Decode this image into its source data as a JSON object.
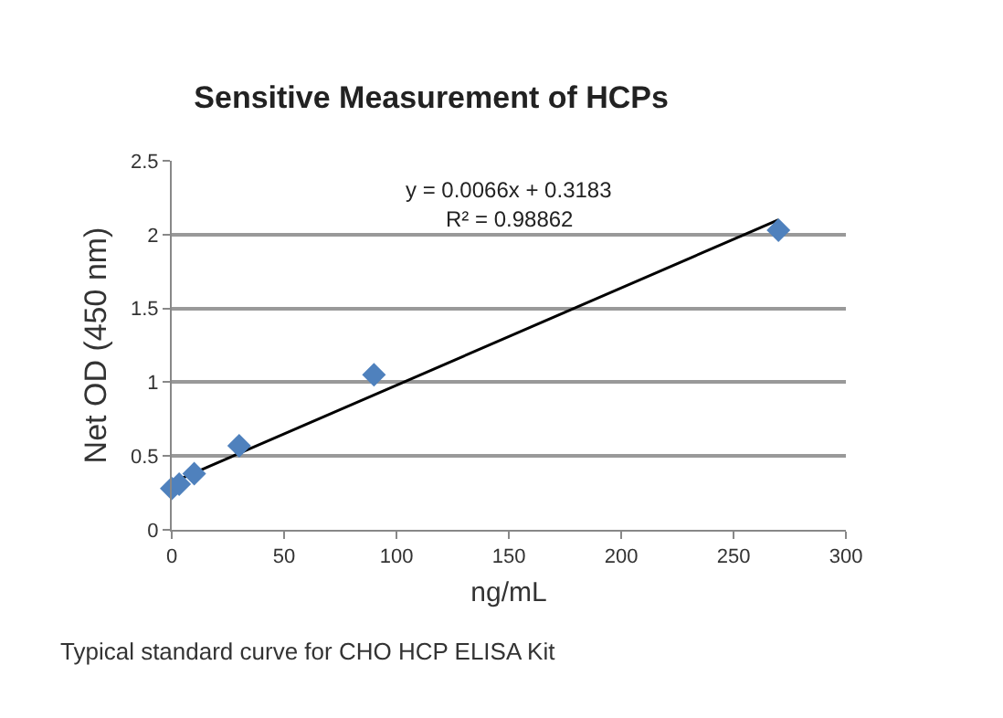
{
  "chart_data": {
    "type": "scatter",
    "title": "Sensitive Measurement of HCPs",
    "xlabel": "ng/mL",
    "ylabel": "Net OD (450 nm)",
    "x": [
      0,
      3.3,
      10,
      30,
      90,
      270
    ],
    "series": [
      {
        "color": "#4f81bd",
        "values": [
          0.28,
          0.31,
          0.38,
          0.57,
          1.05,
          2.03
        ],
        "marker": "diamond"
      },
      {
        "type": "line",
        "color": "#000000",
        "x": [
          0,
          270
        ],
        "values": [
          0.32,
          2.1
        ],
        "marker": "none",
        "line_style": "solid"
      }
    ],
    "annotations": [
      "y = 0.0066x + 0.3183",
      "R² = 0.98862",
      "Typical standard curve for CHO HCP ELISA Kit"
    ],
    "xlim": [
      0,
      300
    ],
    "xticks": [
      0,
      50,
      100,
      150,
      200,
      250,
      300
    ],
    "ylim": [
      0,
      2.5
    ],
    "yticks": [
      0,
      0.5,
      1,
      1.5,
      2,
      2.5
    ],
    "grid": "y"
  }
}
